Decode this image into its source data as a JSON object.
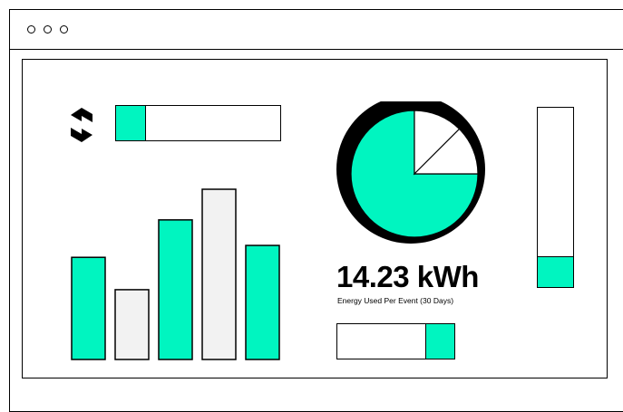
{
  "colors": {
    "accent": "#00f5c0",
    "bar_light": "#f2f2f2",
    "outline": "#000000",
    "background": "#ffffff"
  },
  "titlebar": {
    "controls": [
      "window-dot",
      "window-dot",
      "window-dot"
    ]
  },
  "logo": {
    "icon": "brand-logo-icon"
  },
  "top_progress": {
    "fill_fraction": 0.18
  },
  "bottom_progress": {
    "fill_fraction": 0.25
  },
  "vertical_progress": {
    "fill_fraction": 0.17
  },
  "energy": {
    "value": "14.23 kWh",
    "caption": "Energy Used Per Event (30 Days)"
  },
  "chart_data": {
    "type": "bar",
    "title": "",
    "xlabel": "",
    "ylabel": "",
    "ylim": [
      0,
      100
    ],
    "values": [
      60,
      41,
      82,
      100,
      67
    ],
    "highlighted": [
      true,
      false,
      true,
      false,
      true
    ]
  },
  "pie_data": {
    "type": "pie",
    "slices": [
      {
        "value": 75,
        "color": "accent"
      },
      {
        "value": 12.5,
        "color": "white"
      },
      {
        "value": 12.5,
        "color": "white"
      }
    ]
  }
}
